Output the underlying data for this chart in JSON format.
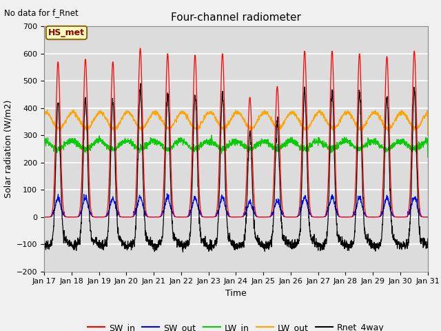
{
  "title": "Four-channel radiometer",
  "top_left_text": "No data for f_Rnet",
  "annotation_box": "HS_met",
  "xlabel": "Time",
  "ylabel": "Solar radiation (W/m2)",
  "ylim": [
    -200,
    700
  ],
  "yticks": [
    -200,
    -100,
    0,
    100,
    200,
    300,
    400,
    500,
    600,
    700
  ],
  "xlim_days": [
    17,
    31
  ],
  "xtick_labels": [
    "Jan 17",
    "Jan 18",
    "Jan 19",
    "Jan 20",
    "Jan 21",
    "Jan 22",
    "Jan 23",
    "Jan 24",
    "Jan 25",
    "Jan 26",
    "Jan 27",
    "Jan 28",
    "Jan 29",
    "Jan 30",
    "Jan 31"
  ],
  "colors": {
    "SW_in": "#ff0000",
    "SW_out": "#0000ff",
    "LW_in": "#00cc00",
    "LW_out": "#ffa500",
    "Rnet_4way": "#000000"
  },
  "background_color": "#dcdcdc",
  "fig_background": "#f0f0f0",
  "grid_color": "#ffffff",
  "title_fontsize": 11,
  "axis_label_fontsize": 9,
  "tick_fontsize": 8,
  "legend_fontsize": 9,
  "sw_in_peaks": [
    570,
    580,
    570,
    620,
    600,
    595,
    600,
    440,
    480,
    610,
    610,
    600,
    590,
    610
  ],
  "n_days": 14,
  "pts_per_day": 144
}
